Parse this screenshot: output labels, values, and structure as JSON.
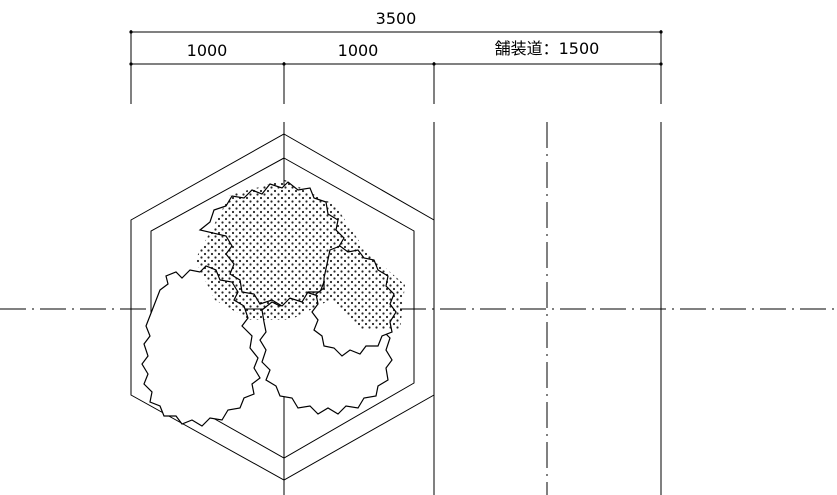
{
  "dimensions": {
    "total": "3500",
    "segment_1": "1000",
    "segment_2": "1000",
    "pavement": "舗装道：1500"
  }
}
